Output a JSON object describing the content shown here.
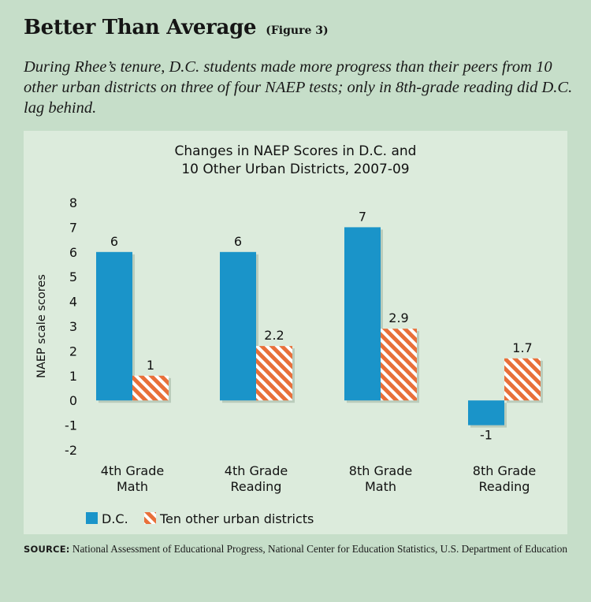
{
  "header": {
    "title": "Better Than Average",
    "figure_tag": "(Figure 3)",
    "subtitle": "During Rhee’s tenure, D.C. students made more progress than their peers from 10 other urban districts on three of four NAEP tests; only in 8th-grade reading did D.C. lag behind."
  },
  "chart_data": {
    "type": "bar",
    "title_lines": [
      "Changes in NAEP Scores in D.C. and",
      "10 Other Urban Districts, 2007-09"
    ],
    "ylabel": "NAEP scale scores",
    "xlabel": "",
    "ylim": [
      -2,
      8
    ],
    "yticks": [
      8,
      7,
      6,
      5,
      4,
      3,
      2,
      1,
      0,
      -1,
      -2
    ],
    "grid": false,
    "legend_position": "bottom-left",
    "categories": [
      [
        "4th Grade",
        "Math"
      ],
      [
        "4th Grade",
        "Reading"
      ],
      [
        "8th Grade",
        "Math"
      ],
      [
        "8th Grade",
        "Reading"
      ]
    ],
    "series": [
      {
        "name": "D.C.",
        "color": "#1a94c9",
        "pattern": "solid",
        "values": [
          6,
          6,
          7,
          -1
        ],
        "labels": [
          "6",
          "6",
          "7",
          "-1"
        ]
      },
      {
        "name": "Ten other urban districts",
        "color": "#e8703a",
        "pattern": "diagonal-stripes",
        "values": [
          1,
          2.2,
          2.9,
          1.7
        ],
        "labels": [
          "1",
          "2.2",
          "2.9",
          "1.7"
        ]
      }
    ]
  },
  "source": {
    "label": "SOURCE:",
    "text": " National Assessment of Educational Progress, National Center for Education Statistics, U.S. Department of Education"
  }
}
